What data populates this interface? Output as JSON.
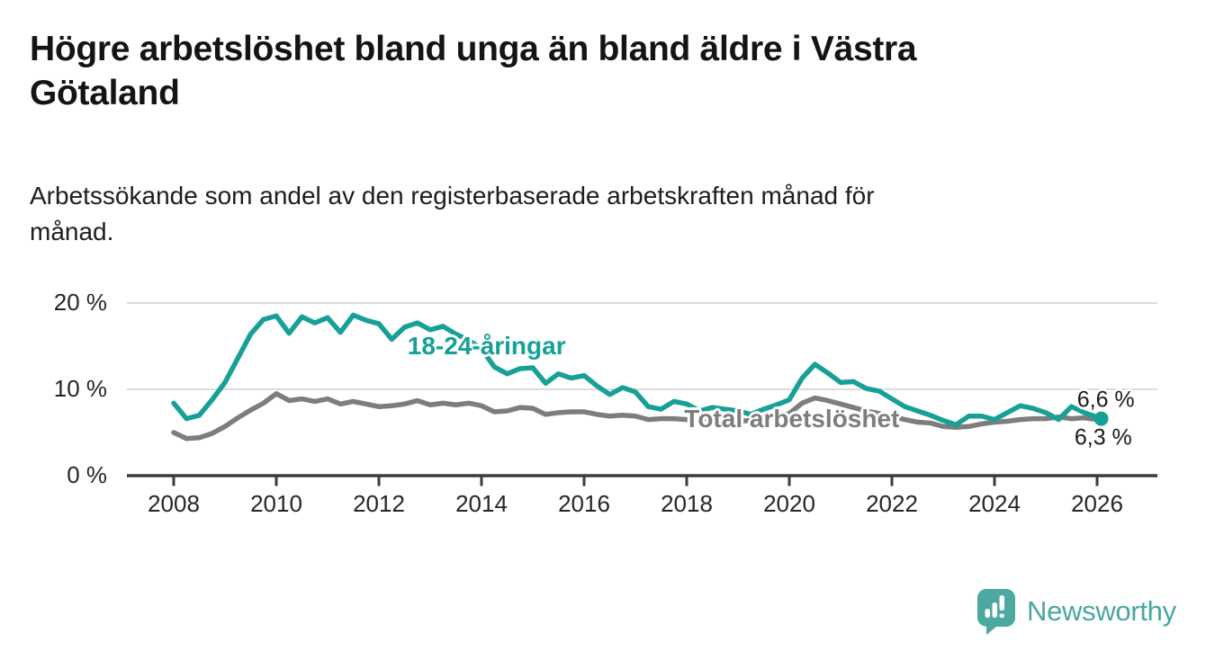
{
  "header": {
    "title_line1": "Högre arbetslöshet bland unga än bland äldre i Västra",
    "title_line2": "Götaland",
    "subtitle_line1": "Arbetssökande som andel av den registerbaserade arbetskraften månad för",
    "subtitle_line2": "månad."
  },
  "footer": {
    "brand": "Newsworthy",
    "brand_color": "#49a7a0",
    "logo_icon": "newsworthy-speech-bubble-bar-chart-icon",
    "logo_bubble_color": "#4ca9a2"
  },
  "chart_data": {
    "type": "line",
    "title": "Högre arbetslöshet bland unga än bland äldre i Västra Götaland",
    "subtitle": "Arbetssökande som andel av den registerbaserade arbetskraften månad för månad.",
    "unit": "%",
    "xlabel": "",
    "ylabel": "",
    "ylim": [
      0,
      21.5
    ],
    "xlim": [
      2007.1,
      2027.2
    ],
    "grid": true,
    "grid_values": [
      10,
      20
    ],
    "y_ticks": [
      {
        "value": 0,
        "label": "0 %"
      },
      {
        "value": 10,
        "label": "10 %"
      },
      {
        "value": 20,
        "label": "20 %"
      }
    ],
    "x_ticks": [
      {
        "value": 2008,
        "label": "2008"
      },
      {
        "value": 2010,
        "label": "2010"
      },
      {
        "value": 2012,
        "label": "2012"
      },
      {
        "value": 2014,
        "label": "2014"
      },
      {
        "value": 2016,
        "label": "2016"
      },
      {
        "value": 2018,
        "label": "2018"
      },
      {
        "value": 2020,
        "label": "2020"
      },
      {
        "value": 2022,
        "label": "2022"
      },
      {
        "value": 2024,
        "label": "2024"
      },
      {
        "value": 2026,
        "label": "2026"
      }
    ],
    "x": [
      2008,
      2008.25,
      2008.5,
      2008.75,
      2009,
      2009.25,
      2009.5,
      2009.75,
      2010,
      2010.25,
      2010.5,
      2010.75,
      2011,
      2011.25,
      2011.5,
      2011.75,
      2012,
      2012.25,
      2012.5,
      2012.75,
      2013,
      2013.25,
      2013.5,
      2013.75,
      2014,
      2014.25,
      2014.5,
      2014.75,
      2015,
      2015.25,
      2015.5,
      2015.75,
      2016,
      2016.25,
      2016.5,
      2016.75,
      2017,
      2017.25,
      2017.5,
      2017.75,
      2018,
      2018.25,
      2018.5,
      2018.75,
      2019,
      2019.25,
      2019.5,
      2019.75,
      2020,
      2020.25,
      2020.5,
      2020.75,
      2021,
      2021.25,
      2021.5,
      2021.75,
      2022,
      2022.25,
      2022.5,
      2022.75,
      2023,
      2023.25,
      2023.5,
      2023.75,
      2024,
      2024.25,
      2024.5,
      2024.75,
      2025,
      2025.25,
      2025.5,
      2025.75,
      2026,
      2026.08
    ],
    "series": [
      {
        "name": "18-24-åringar",
        "color": "#16a098",
        "end_value_label": "6,6 %",
        "values": [
          8.4,
          6.6,
          7.0,
          8.8,
          10.8,
          13.6,
          16.4,
          18.1,
          18.5,
          16.5,
          18.4,
          17.7,
          18.3,
          16.6,
          18.6,
          18.0,
          17.6,
          15.8,
          17.2,
          17.7,
          16.9,
          17.3,
          16.4,
          15.7,
          14.7,
          12.6,
          11.8,
          12.4,
          12.5,
          10.7,
          11.8,
          11.3,
          11.6,
          10.4,
          9.4,
          10.2,
          9.7,
          8.0,
          7.7,
          8.6,
          8.3,
          7.5,
          7.9,
          7.7,
          7.5,
          7.1,
          7.7,
          8.2,
          8.8,
          11.3,
          12.9,
          11.9,
          10.8,
          10.9,
          10.1,
          9.8,
          8.9,
          8.0,
          7.5,
          7.0,
          6.4,
          5.9,
          6.9,
          6.9,
          6.5,
          7.3,
          8.1,
          7.8,
          7.3,
          6.5,
          8.0,
          7.3,
          6.8,
          6.6
        ]
      },
      {
        "name": "Total arbetslöshet",
        "color": "#7d7d7d",
        "end_value_label": "6,3 %",
        "values": [
          5.0,
          4.3,
          4.4,
          4.9,
          5.7,
          6.7,
          7.6,
          8.4,
          9.5,
          8.7,
          8.9,
          8.6,
          8.9,
          8.3,
          8.6,
          8.3,
          8.0,
          8.1,
          8.3,
          8.7,
          8.2,
          8.4,
          8.2,
          8.4,
          8.1,
          7.4,
          7.5,
          7.9,
          7.8,
          7.1,
          7.3,
          7.4,
          7.4,
          7.1,
          6.9,
          7.0,
          6.9,
          6.5,
          6.6,
          6.6,
          6.5,
          6.3,
          6.4,
          6.3,
          6.3,
          6.4,
          6.6,
          6.8,
          7.2,
          8.4,
          9.0,
          8.7,
          8.3,
          7.9,
          7.5,
          7.2,
          6.9,
          6.5,
          6.2,
          6.1,
          5.7,
          5.6,
          5.7,
          6.0,
          6.2,
          6.3,
          6.5,
          6.6,
          6.6,
          6.8,
          6.6,
          6.7,
          6.5,
          6.3
        ]
      }
    ],
    "annotations": {
      "young_label": {
        "text": "18-24-åringar",
        "year": 2014.1,
        "value": 15.0,
        "color": "#16a098"
      },
      "total_label": {
        "text": "Total arbetslöshet",
        "year": 2020.05,
        "value": 6.6,
        "color": "#7d7d7d"
      },
      "end_young": {
        "text": "6,6 %",
        "year": 2026.17,
        "value": 8.8,
        "color": "#1a1a1a"
      },
      "end_total": {
        "text": "6,3 %",
        "year": 2026.12,
        "value": 4.35,
        "color": "#1a1a1a"
      }
    },
    "legend_position": "inline-labels"
  }
}
